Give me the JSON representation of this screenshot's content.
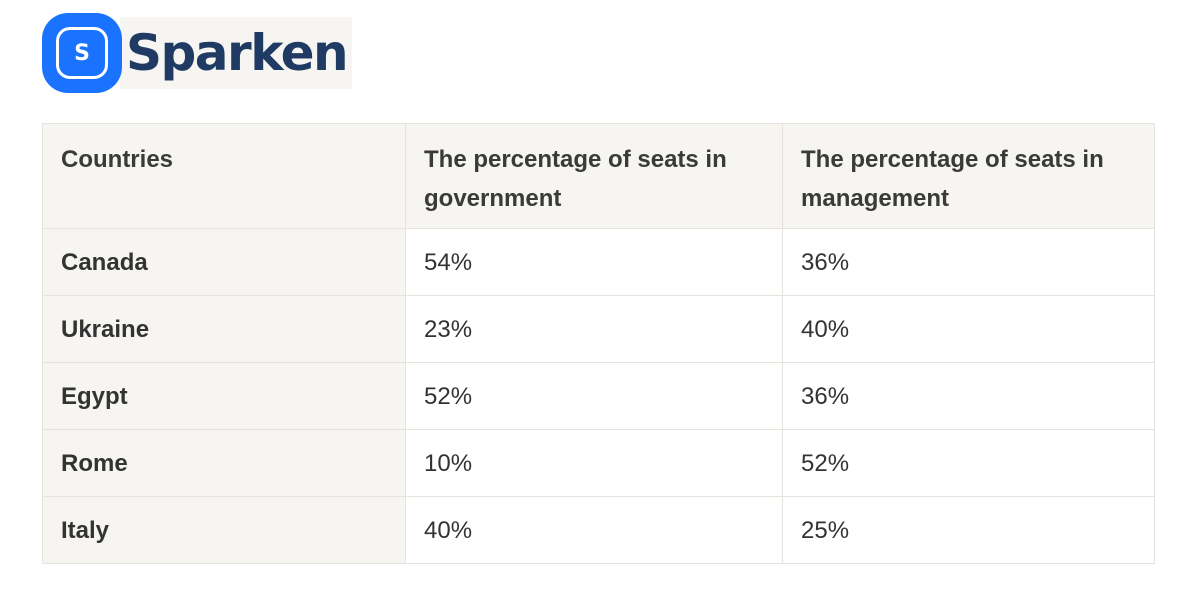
{
  "logo": {
    "badge_letter": "S",
    "wordmark": "Sparken",
    "brand_color": "#1a73ff",
    "wordmark_color": "#1f3b63"
  },
  "chart_data": {
    "type": "table",
    "columns": [
      "Countries",
      "The percentage of seats in government",
      "The percentage of seats in management"
    ],
    "rows": [
      [
        "Canada",
        "54%",
        "36%"
      ],
      [
        "Ukraine",
        "23%",
        "40%"
      ],
      [
        "Egypt",
        "52%",
        "36%"
      ],
      [
        "Rome",
        "10%",
        "52%"
      ],
      [
        "Italy",
        "40%",
        "25%"
      ]
    ],
    "categories": [
      "Canada",
      "Ukraine",
      "Egypt",
      "Rome",
      "Italy"
    ],
    "series": [
      {
        "name": "The percentage of seats in government",
        "values": [
          54,
          23,
          52,
          10,
          40
        ]
      },
      {
        "name": "The percentage of seats in management",
        "values": [
          36,
          40,
          36,
          52,
          25
        ]
      }
    ],
    "header_bg": "#f6f5f2",
    "border_color": "#e6e3dd"
  }
}
